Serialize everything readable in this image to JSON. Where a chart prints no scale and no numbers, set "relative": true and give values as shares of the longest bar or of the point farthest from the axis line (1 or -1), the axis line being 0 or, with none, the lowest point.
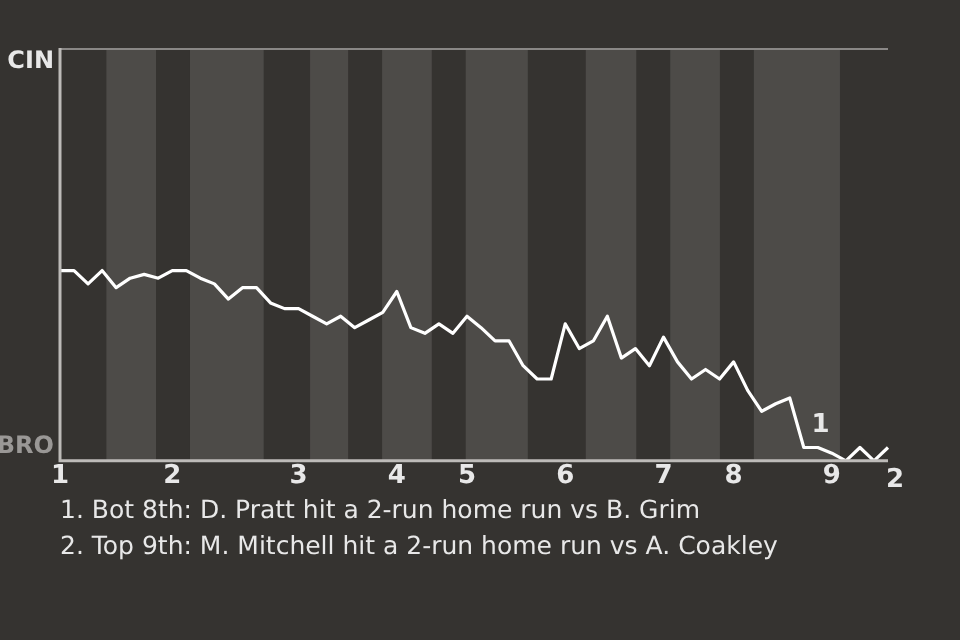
{
  "chart_data": {
    "type": "line",
    "categories": [
      "1",
      null,
      null,
      null,
      null,
      null,
      null,
      null,
      "2",
      null,
      null,
      null,
      null,
      null,
      null,
      null,
      null,
      "3",
      null,
      null,
      null,
      null,
      null,
      null,
      "4",
      null,
      null,
      null,
      null,
      "5",
      null,
      null,
      null,
      null,
      null,
      null,
      "6",
      null,
      null,
      null,
      null,
      null,
      null,
      "7",
      null,
      null,
      null,
      null,
      "8",
      null,
      null,
      null,
      null,
      null,
      null,
      "9",
      null,
      null,
      null,
      null
    ],
    "relative": true,
    "series": [
      {
        "color": "#ffffff",
        "values": [
          1,
          1,
          0.93,
          1,
          0.91,
          0.96,
          0.98,
          0.96,
          1,
          1,
          0.96,
          0.93,
          0.85,
          0.91,
          0.91,
          0.83,
          0.8,
          0.8,
          0.76,
          0.72,
          0.76,
          0.7,
          0.74,
          0.78,
          0.89,
          0.7,
          0.67,
          0.72,
          0.67,
          0.76,
          0.7,
          0.63,
          0.63,
          0.5,
          0.43,
          0.43,
          0.72,
          0.59,
          0.63,
          0.76,
          0.54,
          0.59,
          0.5,
          0.65,
          0.52,
          0.43,
          0.48,
          0.43,
          0.52,
          0.37,
          0.26,
          0.3,
          0.33,
          0.07,
          0.07,
          0.04,
          0,
          0.07,
          0,
          0.07
        ]
      }
    ],
    "marker": "none",
    "annotations": [
      "CIN",
      "BRO",
      "1",
      "2",
      "1. Bot 8th: D. Pratt hit a 2-run home run vs B. Grim",
      "2. Top 9th: M. Mitchell hit a 2-run home run vs A. Coakley"
    ]
  }
}
